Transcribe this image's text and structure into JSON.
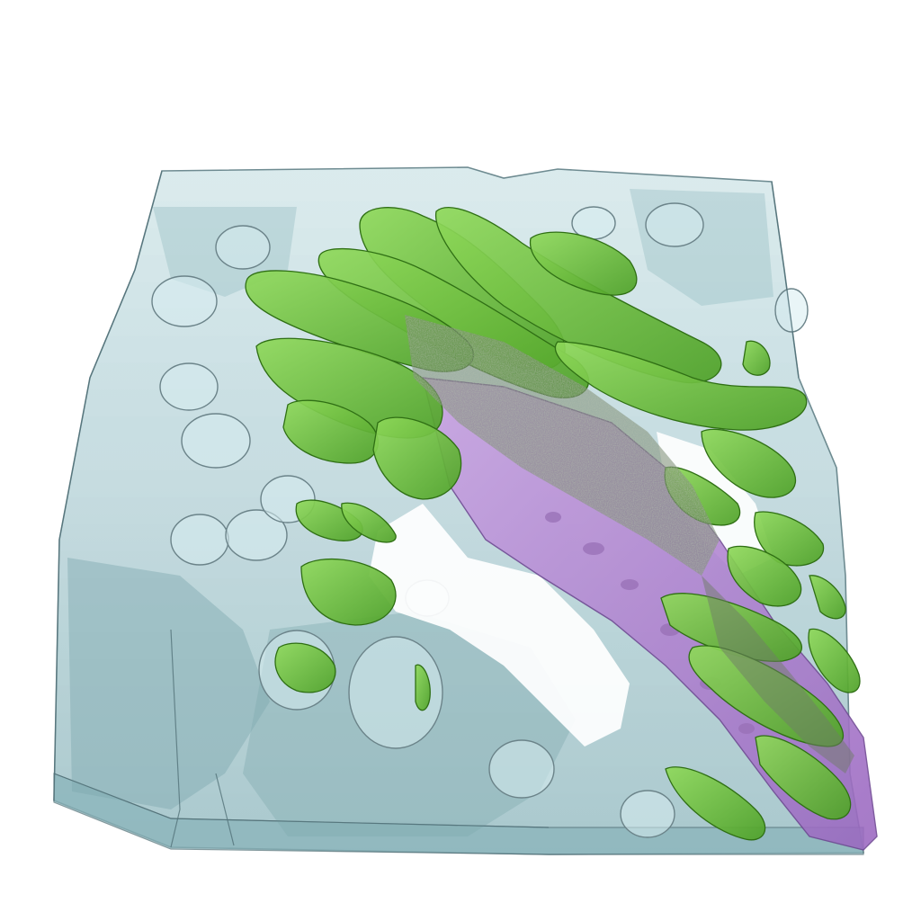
{
  "scene": {
    "description_name": "3d-volume-rendering",
    "colors": {
      "background": "#ffffff",
      "slab_fill": "#a9ccd1",
      "slab_dark": "#7faab2",
      "slab_edge": "#5f7f86",
      "slab_highlight": "#d9f1f3",
      "green_fill": "#6cc23a",
      "green_dark": "#3f8f1e",
      "green_light": "#9be05e",
      "purple_fill": "#b98ad6",
      "purple_dark": "#7a4fa0",
      "grey_speckle": "#7c8a73"
    },
    "layers": [
      "translucent-slab",
      "purple-band",
      "green-structures",
      "grey-speckle-core"
    ]
  }
}
